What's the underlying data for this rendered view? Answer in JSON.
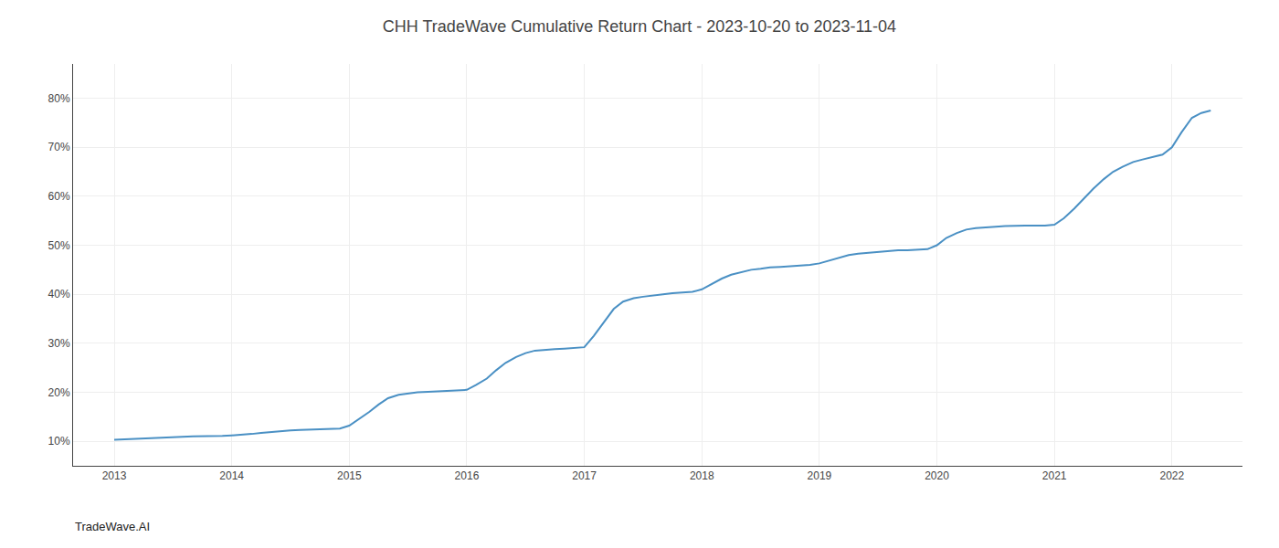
{
  "chart_data": {
    "type": "line",
    "title": "CHH TradeWave Cumulative Return Chart - 2023-10-20 to 2023-11-04",
    "annotations": [
      "TradeWave.AI"
    ],
    "color": "#4a90c4",
    "grid": true,
    "x": [
      2013.0,
      2013.08,
      2013.17,
      2013.25,
      2013.33,
      2013.42,
      2013.5,
      2013.58,
      2013.67,
      2013.75,
      2013.83,
      2013.92,
      2014.0,
      2014.08,
      2014.17,
      2014.25,
      2014.33,
      2014.42,
      2014.5,
      2014.58,
      2014.67,
      2014.75,
      2014.83,
      2014.92,
      2015.0,
      2015.08,
      2015.17,
      2015.25,
      2015.33,
      2015.42,
      2015.5,
      2015.58,
      2015.67,
      2015.75,
      2015.83,
      2015.92,
      2016.0,
      2016.08,
      2016.17,
      2016.25,
      2016.33,
      2016.42,
      2016.5,
      2016.58,
      2016.67,
      2016.75,
      2016.83,
      2016.92,
      2017.0,
      2017.08,
      2017.17,
      2017.25,
      2017.33,
      2017.42,
      2017.5,
      2017.58,
      2017.67,
      2017.75,
      2017.83,
      2017.92,
      2018.0,
      2018.08,
      2018.17,
      2018.25,
      2018.33,
      2018.42,
      2018.5,
      2018.58,
      2018.67,
      2018.75,
      2018.83,
      2018.92,
      2019.0,
      2019.08,
      2019.17,
      2019.25,
      2019.33,
      2019.42,
      2019.5,
      2019.58,
      2019.67,
      2019.75,
      2019.83,
      2019.92,
      2020.0,
      2020.08,
      2020.17,
      2020.25,
      2020.33,
      2020.42,
      2020.5,
      2020.58,
      2020.67,
      2020.75,
      2020.83,
      2020.92,
      2021.0,
      2021.08,
      2021.17,
      2021.25,
      2021.33,
      2021.42,
      2021.5,
      2021.58,
      2021.67,
      2021.75,
      2021.83,
      2021.92,
      2022.0,
      2022.08,
      2022.17,
      2022.25,
      2022.33
    ],
    "values": [
      10.3,
      10.4,
      10.5,
      10.6,
      10.7,
      10.8,
      10.9,
      10.9,
      11.0,
      11.0,
      11.0,
      11.1,
      11.2,
      11.3,
      11.5,
      11.7,
      11.9,
      12.1,
      12.2,
      12.3,
      12.4,
      12.4,
      12.5,
      12.6,
      13.2,
      14.5,
      16.0,
      17.5,
      18.8,
      19.5,
      19.8,
      20.0,
      20.1,
      20.2,
      20.2,
      20.3,
      20.5,
      21.5,
      22.8,
      24.5,
      26.0,
      27.2,
      28.0,
      28.5,
      28.7,
      28.8,
      28.9,
      29.0,
      29.2,
      31.5,
      34.5,
      37.0,
      38.5,
      39.2,
      39.5,
      39.8,
      40.0,
      40.2,
      40.3,
      40.5,
      41.0,
      42.0,
      43.2,
      44.0,
      44.5,
      45.0,
      45.2,
      45.5,
      45.6,
      45.7,
      45.8,
      46.0,
      46.3,
      46.8,
      47.5,
      48.0,
      48.3,
      48.5,
      48.7,
      48.9,
      49.0,
      49.0,
      49.1,
      49.2,
      50.0,
      51.5,
      52.5,
      53.2,
      53.5,
      53.7,
      53.8,
      53.9,
      54.0,
      54.0,
      54.0,
      54.0,
      54.2,
      55.5,
      57.5,
      59.5,
      61.5,
      63.5,
      65.0,
      66.0,
      67.0,
      67.5,
      68.0,
      68.5,
      70.0,
      73.0,
      76.0,
      77.0,
      77.5
    ],
    "xlim": [
      2012.65,
      2022.6
    ],
    "xticks": [
      2013,
      2014,
      2015,
      2016,
      2017,
      2018,
      2019,
      2020,
      2021,
      2022
    ],
    "ylim": [
      5,
      87
    ],
    "yticks": [
      {
        "value": 10,
        "label": "10%"
      },
      {
        "value": 20,
        "label": "20%"
      },
      {
        "value": 30,
        "label": "30%"
      },
      {
        "value": 40,
        "label": "40%"
      },
      {
        "value": 50,
        "label": "50%"
      },
      {
        "value": 60,
        "label": "60%"
      },
      {
        "value": 70,
        "label": "70%"
      },
      {
        "value": 80,
        "label": "80%"
      }
    ]
  }
}
